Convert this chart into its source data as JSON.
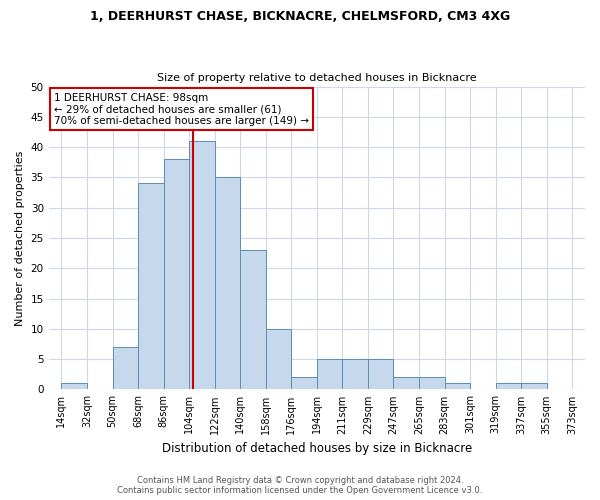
{
  "title1": "1, DEERHURST CHASE, BICKNACRE, CHELMSFORD, CM3 4XG",
  "title2": "Size of property relative to detached houses in Bicknacre",
  "xlabel": "Distribution of detached houses by size in Bicknacre",
  "ylabel": "Number of detached properties",
  "bar_values": [
    1,
    0,
    7,
    34,
    38,
    41,
    35,
    23,
    10,
    2,
    5,
    5,
    5,
    2,
    2,
    1,
    0,
    1,
    1,
    0
  ],
  "bar_color": "#c5d8ec",
  "bar_edge_color": "#5b8db8",
  "vline_x": 4.667,
  "vline_color": "#cc0000",
  "annotation_text": "1 DEERHURST CHASE: 98sqm\n← 29% of detached houses are smaller (61)\n70% of semi-detached houses are larger (149) →",
  "annotation_box_color": "#ffffff",
  "annotation_box_edge": "#cc0000",
  "ylim": [
    0,
    50
  ],
  "yticks": [
    0,
    5,
    10,
    15,
    20,
    25,
    30,
    35,
    40,
    45,
    50
  ],
  "grid_color": "#d0d8e8",
  "footer1": "Contains HM Land Registry data © Crown copyright and database right 2024.",
  "footer2": "Contains public sector information licensed under the Open Government Licence v3.0.",
  "tick_labels": [
    "14sqm",
    "32sqm",
    "50sqm",
    "68sqm",
    "86sqm",
    "104sqm",
    "122sqm",
    "140sqm",
    "158sqm",
    "176sqm",
    "194sqm",
    "211sqm",
    "229sqm",
    "247sqm",
    "265sqm",
    "283sqm",
    "301sqm",
    "319sqm",
    "337sqm",
    "355sqm",
    "373sqm"
  ],
  "n_bars": 20,
  "title1_fontsize": 9,
  "title2_fontsize": 8,
  "ylabel_fontsize": 8,
  "xlabel_fontsize": 8.5,
  "tick_fontsize": 7,
  "ytick_fontsize": 7.5,
  "footer_fontsize": 6
}
